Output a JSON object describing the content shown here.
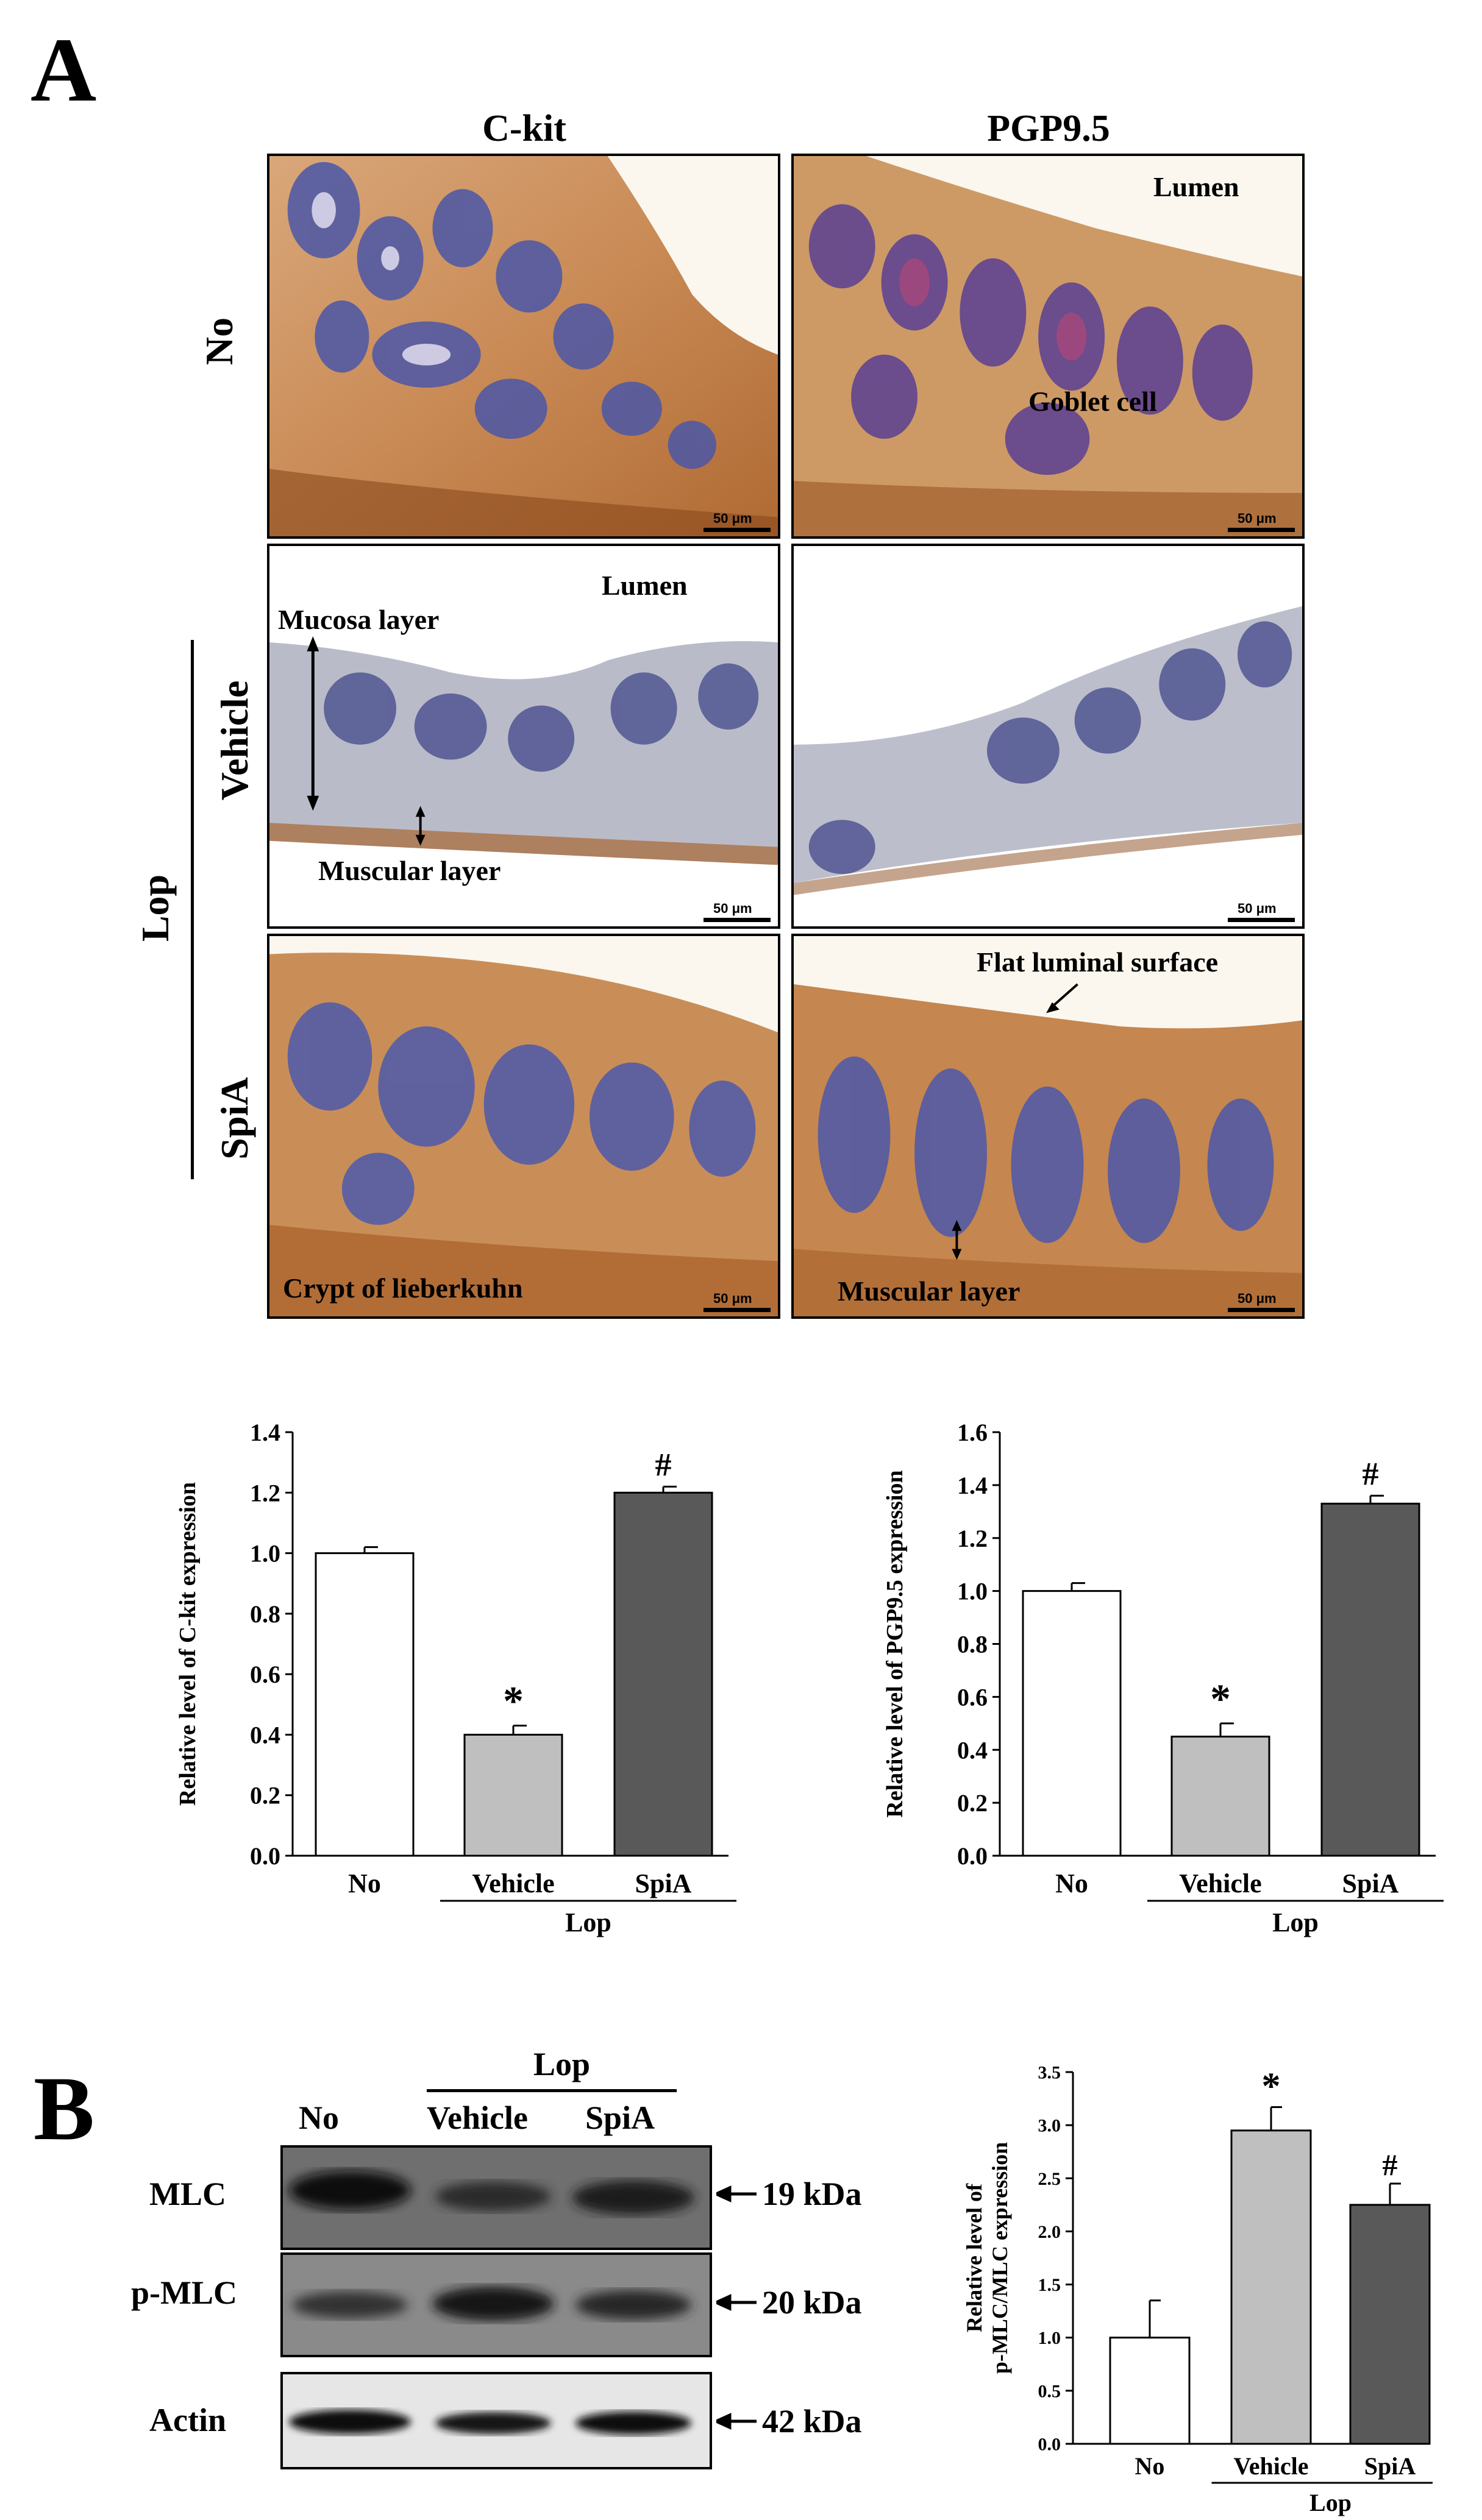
{
  "panels": {
    "a": "A",
    "b": "B"
  },
  "micro": {
    "col_headers": [
      "C-kit",
      "PGP9.5"
    ],
    "row_labels": {
      "no": "No",
      "vehicle": "Vehicle",
      "spia": "SpiA",
      "group": "Lop"
    },
    "annotations": {
      "lumen_1": "Lumen",
      "goblet": "Goblet cell",
      "lumen_2": "Lumen",
      "mucosa": "Mucosa layer",
      "muscular_1": "Muscular layer",
      "flat": "Flat luminal surface",
      "crypt": "Crypt of lieberkuhn",
      "muscular_2": "Muscular layer"
    },
    "scale_bar": "50 μm"
  },
  "western": {
    "group": "Lop",
    "lanes": [
      "No",
      "Vehicle",
      "SpiA"
    ],
    "bands": [
      {
        "name": "MLC",
        "size": "19 kDa"
      },
      {
        "name": "p-MLC",
        "size": "20 kDa"
      },
      {
        "name": "Actin",
        "size": "42 kDa"
      }
    ]
  },
  "chart_data": [
    {
      "type": "bar",
      "categories": [
        "No",
        "Vehicle",
        "SpiA"
      ],
      "values": [
        1.0,
        0.4,
        1.2
      ],
      "errors": [
        0.02,
        0.03,
        0.02
      ],
      "marks": [
        "",
        "*",
        "#"
      ],
      "ylabel": "Relative level of C-kit expression",
      "ylim": [
        0,
        1.4
      ],
      "ticks": [
        "0.0",
        "0.2",
        "0.4",
        "0.6",
        "0.8",
        "1.0",
        "1.2",
        "1.4"
      ],
      "group_label": "Lop",
      "colors": [
        "#ffffff",
        "#bfbfbf",
        "#595959"
      ]
    },
    {
      "type": "bar",
      "categories": [
        "No",
        "Vehicle",
        "SpiA"
      ],
      "values": [
        1.0,
        0.45,
        1.33
      ],
      "errors": [
        0.03,
        0.05,
        0.03
      ],
      "marks": [
        "",
        "*",
        "#"
      ],
      "ylabel": "Relative level of PGP9.5 expression",
      "ylim": [
        0,
        1.6
      ],
      "ticks": [
        "0.0",
        "0.2",
        "0.4",
        "0.6",
        "0.8",
        "1.0",
        "1.2",
        "1.4",
        "1.6"
      ],
      "group_label": "Lop",
      "colors": [
        "#ffffff",
        "#bfbfbf",
        "#595959"
      ]
    },
    {
      "type": "bar",
      "categories": [
        "No",
        "Vehicle",
        "SpiA"
      ],
      "values": [
        1.0,
        2.95,
        2.25
      ],
      "errors": [
        0.35,
        0.22,
        0.2
      ],
      "marks": [
        "",
        "*",
        "#"
      ],
      "ylabel_lines": [
        "Relative level of",
        "p-MLC/MLC expression"
      ],
      "ylim": [
        0,
        3.5
      ],
      "ticks": [
        "0.0",
        "0.5",
        "1.0",
        "1.5",
        "2.0",
        "2.5",
        "3.0",
        "3.5"
      ],
      "group_label": "Lop",
      "colors": [
        "#ffffff",
        "#bfbfbf",
        "#595959"
      ]
    }
  ]
}
